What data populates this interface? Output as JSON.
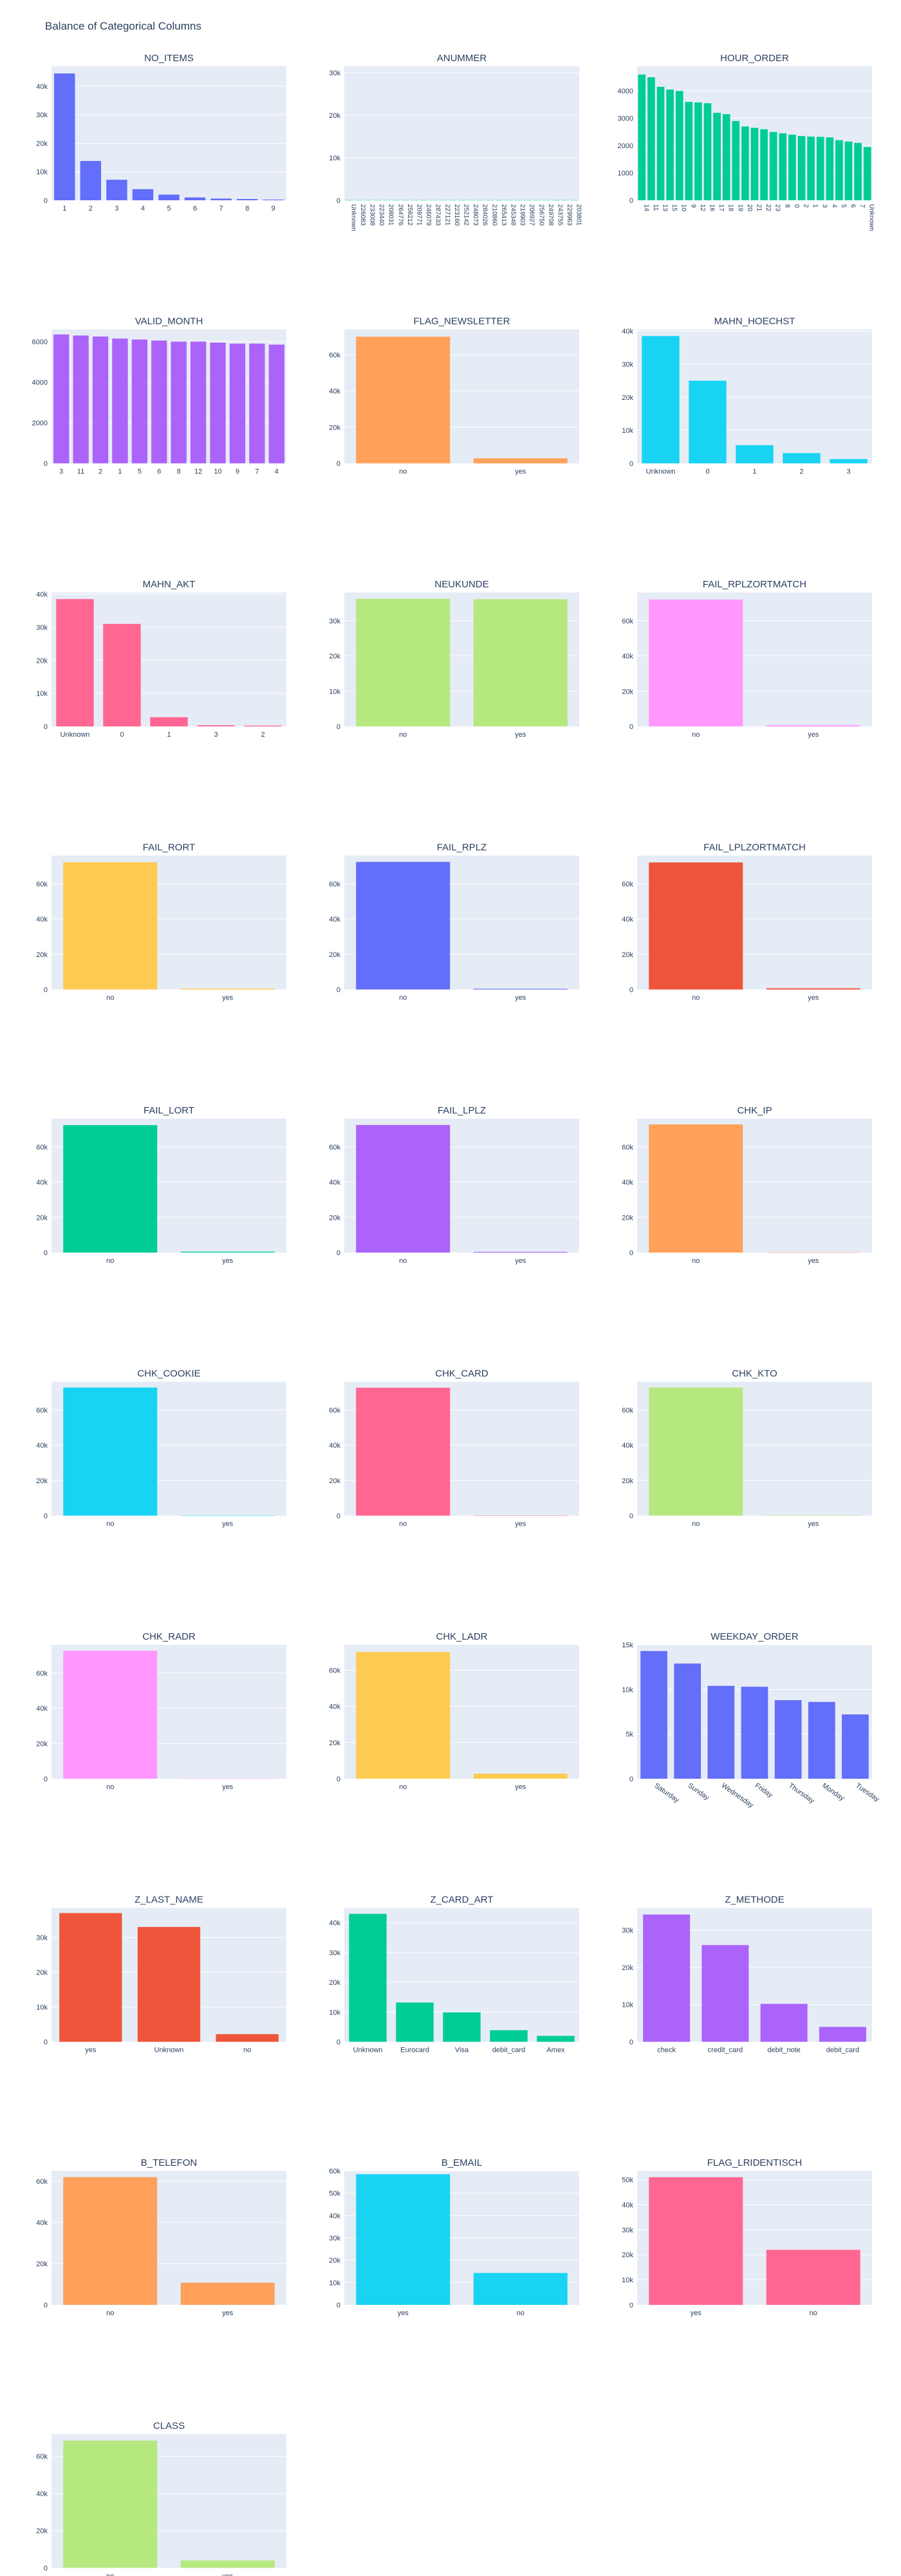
{
  "page": {
    "title": "Balance of Categorical Columns"
  },
  "colors": [
    "#636efa",
    "#00cc96",
    "#ab63fa",
    "#ffa15a",
    "#19d3f3",
    "#ff6692",
    "#b6e880",
    "#ff97ff",
    "#fecb52",
    "#ef553b"
  ],
  "chart_data": [
    {
      "type": "bar",
      "title": "NO_ITEMS",
      "color": "#636efa",
      "categories": [
        "1",
        "2",
        "3",
        "4",
        "5",
        "6",
        "7",
        "8",
        "9"
      ],
      "values": [
        44500,
        13800,
        7200,
        3900,
        2000,
        1000,
        600,
        450,
        250
      ],
      "yticks": [
        0,
        10000,
        20000,
        30000,
        40000
      ],
      "ytick_labels": [
        "0",
        "10k",
        "20k",
        "30k",
        "40k"
      ],
      "ylim": [
        0,
        47000
      ],
      "tick_rotation": 0
    },
    {
      "type": "bar",
      "title": "ANUMMER",
      "color": "#00cc96",
      "categories": [
        "Unknown",
        "226083",
        "233008",
        "223440",
        "208031",
        "264776",
        "256212",
        "209771",
        "246079",
        "287433",
        "227121",
        "223160",
        "252142",
        "248073",
        "284026",
        "210860",
        "265413",
        "245348",
        "219903",
        "206927",
        "256750",
        "249708",
        "243755",
        "229963",
        "203801"
      ],
      "values": [
        40,
        40,
        40,
        40,
        40,
        40,
        40,
        40,
        40,
        40,
        40,
        40,
        40,
        40,
        40,
        40,
        40,
        40,
        40,
        40,
        40,
        40,
        40,
        40,
        40
      ],
      "yticks": [
        0,
        10000,
        20000,
        30000
      ],
      "ytick_labels": [
        "0",
        "10k",
        "20k",
        "30k"
      ],
      "ylim": [
        0,
        31500
      ],
      "tick_rotation": 90
    },
    {
      "type": "bar",
      "title": "HOUR_ORDER",
      "color": "#00cc96",
      "categories": [
        "14",
        "11",
        "13",
        "15",
        "10",
        "9",
        "12",
        "16",
        "17",
        "18",
        "19",
        "20",
        "21",
        "22",
        "23",
        "8",
        "0",
        "2",
        "1",
        "3",
        "4",
        "5",
        "6",
        "7",
        "Unknown"
      ],
      "values": [
        4600,
        4500,
        4150,
        4050,
        4000,
        3600,
        3580,
        3550,
        3200,
        3150,
        2900,
        2700,
        2650,
        2600,
        2500,
        2450,
        2400,
        2350,
        2330,
        2320,
        2300,
        2200,
        2150,
        2100,
        1950
      ],
      "yticks": [
        0,
        1000,
        2000,
        3000,
        4000
      ],
      "ytick_labels": [
        "0",
        "1000",
        "2000",
        "3000",
        "4000"
      ],
      "ylim": [
        0,
        4900
      ],
      "tick_rotation": 90
    },
    {
      "type": "bar",
      "title": "VALID_MONTH",
      "color": "#ab63fa",
      "categories": [
        "3",
        "11",
        "2",
        "1",
        "5",
        "6",
        "8",
        "12",
        "10",
        "9",
        "7",
        "4"
      ],
      "values": [
        6350,
        6300,
        6250,
        6150,
        6100,
        6050,
        6000,
        6000,
        5950,
        5900,
        5900,
        5850
      ],
      "yticks": [
        0,
        2000,
        4000,
        6000
      ],
      "ytick_labels": [
        "0",
        "2000",
        "4000",
        "6000"
      ],
      "ylim": [
        0,
        6600
      ],
      "tick_rotation": 0
    },
    {
      "type": "bar",
      "title": "FLAG_NEWSLETTER",
      "color": "#ffa15a",
      "categories": [
        "no",
        "yes"
      ],
      "values": [
        70000,
        2800
      ],
      "yticks": [
        0,
        20000,
        40000,
        60000
      ],
      "ytick_labels": [
        "0",
        "20k",
        "40k",
        "60k"
      ],
      "ylim": [
        0,
        74000
      ],
      "tick_rotation": 0
    },
    {
      "type": "bar",
      "title": "MAHN_HOECHST",
      "color": "#19d3f3",
      "categories": [
        "Unknown",
        "0",
        "1",
        "2",
        "3"
      ],
      "values": [
        38500,
        25000,
        5500,
        3100,
        1300
      ],
      "yticks": [
        0,
        10000,
        20000,
        30000,
        40000
      ],
      "ytick_labels": [
        "0",
        "10k",
        "20k",
        "30k",
        "40k"
      ],
      "ylim": [
        0,
        40500
      ],
      "tick_rotation": 0
    },
    {
      "type": "bar",
      "title": "MAHN_AKT",
      "color": "#ff6692",
      "categories": [
        "Unknown",
        "0",
        "1",
        "3",
        "2"
      ],
      "values": [
        38500,
        31000,
        2800,
        350,
        250
      ],
      "yticks": [
        0,
        10000,
        20000,
        30000,
        40000
      ],
      "ytick_labels": [
        "0",
        "10k",
        "20k",
        "30k",
        "40k"
      ],
      "ylim": [
        0,
        40500
      ],
      "tick_rotation": 0
    },
    {
      "type": "bar",
      "title": "NEUKUNDE",
      "color": "#b6e880",
      "categories": [
        "no",
        "yes"
      ],
      "values": [
        36200,
        36100
      ],
      "yticks": [
        0,
        10000,
        20000,
        30000
      ],
      "ytick_labels": [
        "0",
        "10k",
        "20k",
        "30k"
      ],
      "ylim": [
        0,
        38000
      ],
      "tick_rotation": 0
    },
    {
      "type": "bar",
      "title": "FAIL_RPLZORTMATCH",
      "color": "#ff97ff",
      "categories": [
        "no",
        "yes"
      ],
      "values": [
        72000,
        700
      ],
      "yticks": [
        0,
        20000,
        40000,
        60000
      ],
      "ytick_labels": [
        "0",
        "20k",
        "40k",
        "60k"
      ],
      "ylim": [
        0,
        76000
      ],
      "tick_rotation": 0
    },
    {
      "type": "bar",
      "title": "FAIL_RORT",
      "color": "#fecb52",
      "categories": [
        "no",
        "yes"
      ],
      "values": [
        72200,
        500
      ],
      "yticks": [
        0,
        20000,
        40000,
        60000
      ],
      "ytick_labels": [
        "0",
        "20k",
        "40k",
        "60k"
      ],
      "ylim": [
        0,
        76000
      ],
      "tick_rotation": 0
    },
    {
      "type": "bar",
      "title": "FAIL_RPLZ",
      "color": "#636efa",
      "categories": [
        "no",
        "yes"
      ],
      "values": [
        72400,
        400
      ],
      "yticks": [
        0,
        20000,
        40000,
        60000
      ],
      "ytick_labels": [
        "0",
        "20k",
        "40k",
        "60k"
      ],
      "ylim": [
        0,
        76000
      ],
      "tick_rotation": 0
    },
    {
      "type": "bar",
      "title": "FAIL_LPLZORTMATCH",
      "color": "#ef553b",
      "categories": [
        "no",
        "yes"
      ],
      "values": [
        72100,
        700
      ],
      "yticks": [
        0,
        20000,
        40000,
        60000
      ],
      "ytick_labels": [
        "0",
        "20k",
        "40k",
        "60k"
      ],
      "ylim": [
        0,
        76000
      ],
      "tick_rotation": 0
    },
    {
      "type": "bar",
      "title": "FAIL_LORT",
      "color": "#00cc96",
      "categories": [
        "no",
        "yes"
      ],
      "values": [
        72300,
        500
      ],
      "yticks": [
        0,
        20000,
        40000,
        60000
      ],
      "ytick_labels": [
        "0",
        "20k",
        "40k",
        "60k"
      ],
      "ylim": [
        0,
        76000
      ],
      "tick_rotation": 0
    },
    {
      "type": "bar",
      "title": "FAIL_LPLZ",
      "color": "#ab63fa",
      "categories": [
        "no",
        "yes"
      ],
      "values": [
        72400,
        400
      ],
      "yticks": [
        0,
        20000,
        40000,
        60000
      ],
      "ytick_labels": [
        "0",
        "20k",
        "40k",
        "60k"
      ],
      "ylim": [
        0,
        76000
      ],
      "tick_rotation": 0
    },
    {
      "type": "bar",
      "title": "CHK_IP",
      "color": "#ffa15a",
      "categories": [
        "no",
        "yes"
      ],
      "values": [
        72700,
        100
      ],
      "yticks": [
        0,
        20000,
        40000,
        60000
      ],
      "ytick_labels": [
        "0",
        "20k",
        "40k",
        "60k"
      ],
      "ylim": [
        0,
        76000
      ],
      "tick_rotation": 0
    },
    {
      "type": "bar",
      "title": "CHK_COOKIE",
      "color": "#19d3f3",
      "categories": [
        "no",
        "yes"
      ],
      "values": [
        72700,
        100
      ],
      "yticks": [
        0,
        20000,
        40000,
        60000
      ],
      "ytick_labels": [
        "0",
        "20k",
        "40k",
        "60k"
      ],
      "ylim": [
        0,
        76000
      ],
      "tick_rotation": 0
    },
    {
      "type": "bar",
      "title": "CHK_CARD",
      "color": "#ff6692",
      "categories": [
        "no",
        "yes"
      ],
      "values": [
        72600,
        100
      ],
      "yticks": [
        0,
        20000,
        40000,
        60000
      ],
      "ytick_labels": [
        "0",
        "20k",
        "40k",
        "60k"
      ],
      "ylim": [
        0,
        76000
      ],
      "tick_rotation": 0
    },
    {
      "type": "bar",
      "title": "CHK_KTO",
      "color": "#b6e880",
      "categories": [
        "no",
        "yes"
      ],
      "values": [
        72700,
        100
      ],
      "yticks": [
        0,
        20000,
        40000,
        60000
      ],
      "ytick_labels": [
        "0",
        "20k",
        "40k",
        "60k"
      ],
      "ylim": [
        0,
        76000
      ],
      "tick_rotation": 0
    },
    {
      "type": "bar",
      "title": "CHK_RADR",
      "color": "#ff97ff",
      "categories": [
        "no",
        "yes"
      ],
      "values": [
        72600,
        150
      ],
      "yticks": [
        0,
        20000,
        40000,
        60000
      ],
      "ytick_labels": [
        "0",
        "20k",
        "40k",
        "60k"
      ],
      "ylim": [
        0,
        76000
      ],
      "tick_rotation": 0
    },
    {
      "type": "bar",
      "title": "CHK_LADR",
      "color": "#fecb52",
      "categories": [
        "no",
        "yes"
      ],
      "values": [
        70000,
        2800
      ],
      "yticks": [
        0,
        20000,
        40000,
        60000
      ],
      "ytick_labels": [
        "0",
        "20k",
        "40k",
        "60k"
      ],
      "ylim": [
        0,
        74000
      ],
      "tick_rotation": 0
    },
    {
      "type": "bar",
      "title": "WEEKDAY_ORDER",
      "color": "#636efa",
      "categories": [
        "Saturday",
        "Sunday",
        "Wednesday",
        "Friday",
        "Thursday",
        "Monday",
        "Tuesday"
      ],
      "values": [
        14300,
        12900,
        10400,
        10300,
        8800,
        8600,
        7200
      ],
      "yticks": [
        0,
        5000,
        10000,
        15000
      ],
      "ytick_labels": [
        "0",
        "5k",
        "10k",
        "15k"
      ],
      "ylim": [
        0,
        15000
      ],
      "tick_rotation": 35
    },
    {
      "type": "bar",
      "title": "Z_LAST_NAME",
      "color": "#ef553b",
      "categories": [
        "yes",
        "Unknown",
        "no"
      ],
      "values": [
        37000,
        33000,
        2200
      ],
      "yticks": [
        0,
        10000,
        20000,
        30000
      ],
      "ytick_labels": [
        "0",
        "10k",
        "20k",
        "30k"
      ],
      "ylim": [
        0,
        38500
      ],
      "tick_rotation": 0
    },
    {
      "type": "bar",
      "title": "Z_CARD_ART",
      "color": "#00cc96",
      "categories": [
        "Unknown",
        "Eurocard",
        "Visa",
        "debit_card",
        "Amex"
      ],
      "values": [
        43000,
        13200,
        9900,
        3900,
        2000
      ],
      "yticks": [
        0,
        10000,
        20000,
        30000,
        40000
      ],
      "ytick_labels": [
        "0",
        "10k",
        "20k",
        "30k",
        "40k"
      ],
      "ylim": [
        0,
        45000
      ],
      "tick_rotation": 0
    },
    {
      "type": "bar",
      "title": "Z_METHODE",
      "color": "#ab63fa",
      "categories": [
        "check",
        "credit_card",
        "debit_note",
        "debit_card"
      ],
      "values": [
        34200,
        26000,
        10200,
        4000
      ],
      "yticks": [
        0,
        10000,
        20000,
        30000
      ],
      "ytick_labels": [
        "0",
        "10k",
        "20k",
        "30k"
      ],
      "ylim": [
        0,
        36000
      ],
      "tick_rotation": 0
    },
    {
      "type": "bar",
      "title": "B_TELEFON",
      "color": "#ffa15a",
      "categories": [
        "no",
        "yes"
      ],
      "values": [
        62000,
        10800
      ],
      "yticks": [
        0,
        20000,
        40000,
        60000
      ],
      "ytick_labels": [
        "0",
        "20k",
        "40k",
        "60k"
      ],
      "ylim": [
        0,
        65000
      ],
      "tick_rotation": 0
    },
    {
      "type": "bar",
      "title": "B_EMAIL",
      "color": "#19d3f3",
      "categories": [
        "yes",
        "no"
      ],
      "values": [
        58500,
        14300
      ],
      "yticks": [
        0,
        10000,
        20000,
        30000,
        40000,
        50000,
        60000
      ],
      "ytick_labels": [
        "0",
        "10k",
        "20k",
        "30k",
        "40k",
        "50k",
        "60k"
      ],
      "ylim": [
        0,
        60000
      ],
      "tick_rotation": 0
    },
    {
      "type": "bar",
      "title": "FLAG_LRIDENTISCH",
      "color": "#ff6692",
      "categories": [
        "yes",
        "no"
      ],
      "values": [
        51000,
        22000
      ],
      "yticks": [
        0,
        10000,
        20000,
        30000,
        40000,
        50000
      ],
      "ytick_labels": [
        "0",
        "10k",
        "20k",
        "30k",
        "40k",
        "50k"
      ],
      "ylim": [
        0,
        53500
      ],
      "tick_rotation": 0
    },
    {
      "type": "bar",
      "title": "CLASS",
      "color": "#b6e880",
      "categories": [
        "no",
        "yes"
      ],
      "values": [
        68500,
        4000
      ],
      "yticks": [
        0,
        20000,
        40000,
        60000
      ],
      "ytick_labels": [
        "0",
        "20k",
        "40k",
        "60k"
      ],
      "ylim": [
        0,
        72000
      ],
      "tick_rotation": 0
    }
  ]
}
